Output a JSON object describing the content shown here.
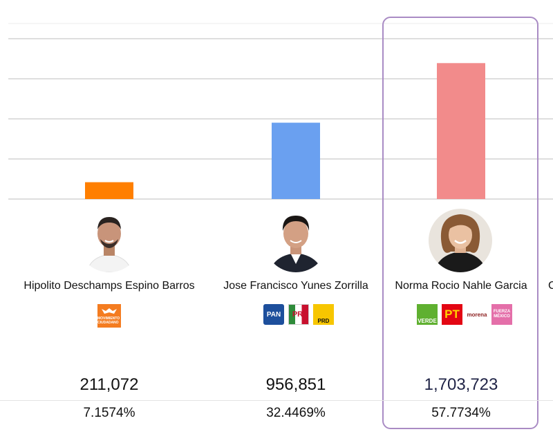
{
  "chart_data": {
    "type": "bar",
    "categories": [
      "Hipolito Deschamps Espino Barros",
      "Jose Francisco Yunes Zorrilla",
      "Norma Rocio Nahle Garcia"
    ],
    "values": [
      211072,
      956851,
      1703723
    ],
    "percentages": [
      7.1574,
      32.4469,
      57.7734
    ],
    "bar_colors": [
      "#ff7f00",
      "#6aa0f0",
      "#f28b8b"
    ],
    "grid": true,
    "highlighted_category": "Norma Rocio Nahle Garcia"
  },
  "candidates": [
    {
      "name": "Hipolito Deschamps Espino Barros",
      "votes": "211,072",
      "percent": "7.1574%",
      "parties": [
        {
          "icon": "movimiento-ciudadano-logo",
          "label": "MOVIMIENTO CIUDADANO",
          "color": "#f47c20"
        }
      ]
    },
    {
      "name": "Jose Francisco Yunes Zorrilla",
      "votes": "956,851",
      "percent": "32.4469%",
      "parties": [
        {
          "icon": "pan-logo",
          "label": "PAN",
          "color": "#1d4f9c"
        },
        {
          "icon": "pri-logo",
          "label": "PRI",
          "color": "#c8102e"
        },
        {
          "icon": "prd-logo",
          "label": "PRD",
          "color": "#f7c600"
        }
      ]
    },
    {
      "name": "Norma Rocio Nahle Garcia",
      "votes": "1,703,723",
      "percent": "57.7734%",
      "parties": [
        {
          "icon": "verde-logo",
          "label": "VERDE",
          "color": "#5fb030"
        },
        {
          "icon": "pt-logo",
          "label": "PT",
          "color": "#e30613"
        },
        {
          "icon": "morena-logo",
          "label": "morena",
          "color": "#8b1d1d"
        },
        {
          "icon": "fuerza-por-mexico-logo",
          "label": "FUERZA MÉXICO",
          "color": "#e46fa9"
        }
      ]
    }
  ],
  "partial_next_candidate_initial": "C"
}
